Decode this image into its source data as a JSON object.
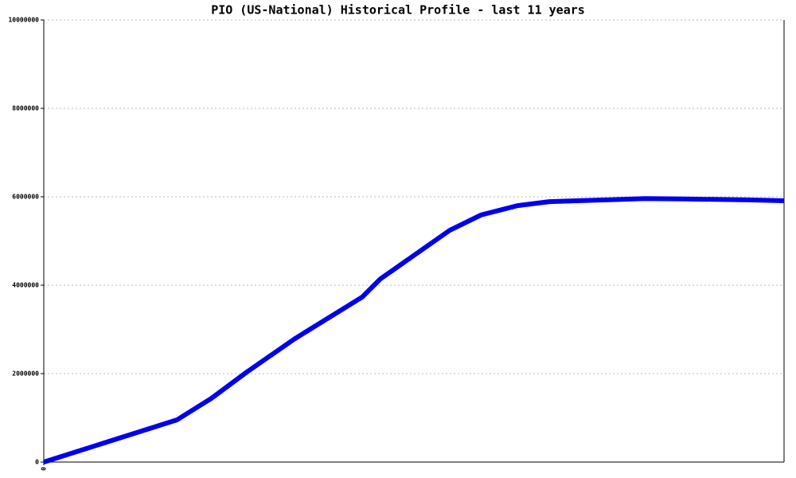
{
  "chart_data": {
    "type": "line",
    "title": "PIO (US-National) Historical Profile - last 11 years",
    "x": [
      0,
      1.98,
      2.49,
      3.02,
      3.73,
      4.73,
      5.0,
      6.03,
      6.5,
      7.04,
      7.51,
      8.34,
      8.93,
      9.52,
      10.47,
      11
    ],
    "series": [
      {
        "name": "PIO",
        "color": "#0000ee",
        "values": [
          0,
          955000,
          1440000,
          2040000,
          2790000,
          3730000,
          4140000,
          5240000,
          5590000,
          5800000,
          5890000,
          5930000,
          5960000,
          5950000,
          5930000,
          5910000
        ]
      }
    ],
    "xlim": [
      0,
      11
    ],
    "xticks": [
      0
    ],
    "ylim": [
      0,
      10000000
    ],
    "yticks": [
      0,
      2000000,
      4000000,
      6000000,
      8000000,
      10000000
    ],
    "grid": true
  }
}
